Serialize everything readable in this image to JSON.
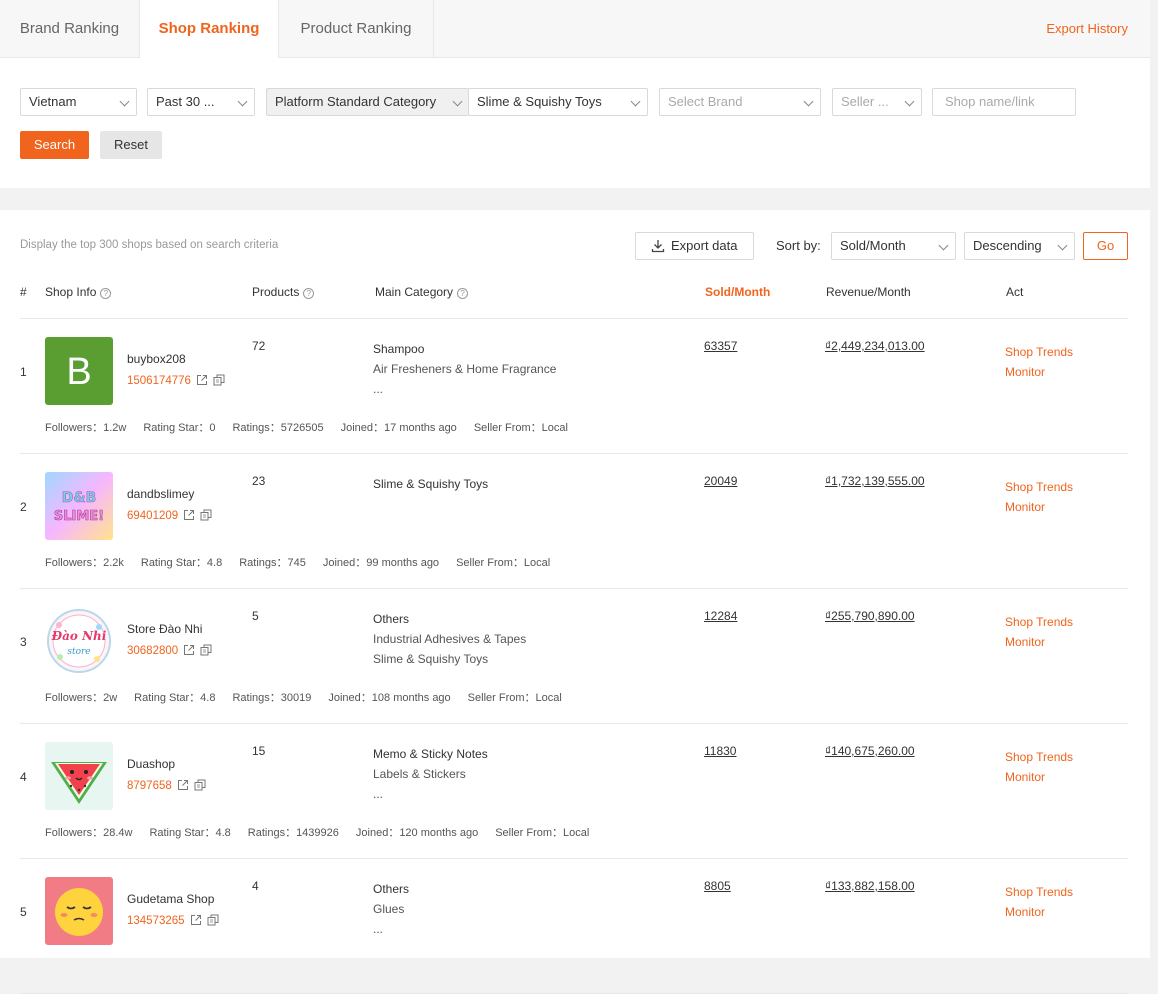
{
  "tabs": [
    "Brand Ranking",
    "Shop Ranking",
    "Product Ranking"
  ],
  "active_tab": "Shop Ranking",
  "export_history": "Export History",
  "filters": {
    "country": "Vietnam",
    "period": "Past 30 ...",
    "category_type": "Platform Standard Category",
    "category": "Slime & Squishy Toys",
    "brand_placeholder": "Select Brand",
    "seller_placeholder": "Seller ...",
    "shop_placeholder": "Shop name/link",
    "search": "Search",
    "reset": "Reset"
  },
  "results": {
    "hint": "Display the top 300 shops based on search criteria",
    "export": "Export data",
    "sort_label": "Sort by:",
    "sort_field": "Sold/Month",
    "sort_order": "Descending",
    "go": "Go"
  },
  "columns": {
    "num": "#",
    "shop_info": "Shop Info",
    "products": "Products",
    "main_category": "Main Category",
    "sold": "Sold/Month",
    "revenue": "Revenue/Month",
    "act": "Act"
  },
  "actions": {
    "trends": "Shop Trends",
    "monitor": "Monitor"
  },
  "stat_labels": {
    "followers": "Followers：",
    "rating_star": "Rating Star：",
    "ratings": "Ratings：",
    "joined": "Joined：",
    "seller_from": "Seller From："
  },
  "rows": [
    {
      "rank": "1",
      "name": "buybox208",
      "id": "1506174776",
      "avatar": {
        "type": "letter",
        "letter": "B",
        "color": "#5a9e32"
      },
      "products": "72",
      "categories": [
        "Shampoo",
        "Air Fresheners & Home Fragrance",
        "..."
      ],
      "sold": "63357",
      "revenue": "₫2,449,234,013.00",
      "followers": "1.2w",
      "rating_star": "0",
      "ratings": "5726505",
      "joined": "17 months ago",
      "seller_from": "Local"
    },
    {
      "rank": "2",
      "name": "dandbslimey",
      "id": "69401209",
      "avatar": {
        "type": "slime",
        "text": "D&B SLIME!"
      },
      "products": "23",
      "categories": [
        "Slime & Squishy Toys"
      ],
      "sold": "20049",
      "revenue": "₫1,732,139,555.00",
      "followers": "2.2k",
      "rating_star": "4.8",
      "ratings": "745",
      "joined": "99 months ago",
      "seller_from": "Local"
    },
    {
      "rank": "3",
      "name": "Store Đào Nhi",
      "id": "30682800",
      "avatar": {
        "type": "badge",
        "text": "Đào Nhi"
      },
      "products": "5",
      "categories": [
        "Others",
        "Industrial Adhesives & Tapes",
        "Slime & Squishy Toys"
      ],
      "sold": "12284",
      "revenue": "₫255,790,890.00",
      "followers": "2w",
      "rating_star": "4.8",
      "ratings": "30019",
      "joined": "108 months ago",
      "seller_from": "Local"
    },
    {
      "rank": "4",
      "name": "Duashop",
      "id": "8797658",
      "avatar": {
        "type": "watermelon"
      },
      "products": "15",
      "categories": [
        "Memo & Sticky Notes",
        "Labels & Stickers",
        "..."
      ],
      "sold": "11830",
      "revenue": "₫140,675,260.00",
      "followers": "28.4w",
      "rating_star": "4.8",
      "ratings": "1439926",
      "joined": "120 months ago",
      "seller_from": "Local"
    },
    {
      "rank": "5",
      "name": "Gudetama Shop",
      "id": "134573265",
      "avatar": {
        "type": "gudetama"
      },
      "products": "4",
      "categories": [
        "Others",
        "Glues",
        "..."
      ],
      "sold": "8805",
      "revenue": "₫133,882,158.00",
      "followers": "",
      "rating_star": "",
      "ratings": "",
      "joined": "",
      "seller_from": ""
    }
  ]
}
